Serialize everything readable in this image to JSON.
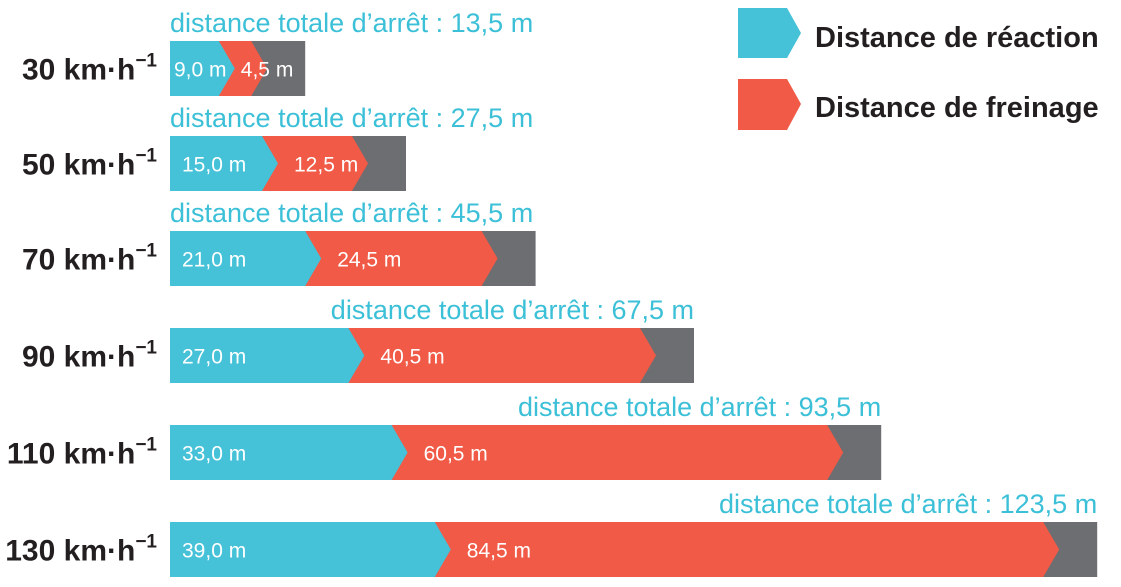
{
  "chart_data": {
    "type": "bar",
    "orientation": "horizontal",
    "stacked": true,
    "legend_position": "top-right",
    "colors": {
      "reaction": "#45c1d8",
      "braking": "#f05a46",
      "tail": "#6d6e71",
      "total_label": "#3cc0d7"
    },
    "legend": [
      "Distance de réaction",
      "Distance de freinage"
    ],
    "total_prefix": "distance totale d’arrêt :",
    "rows": [
      {
        "speed": "30 km·h",
        "exp": "−1",
        "reaction": 9.0,
        "reaction_label": "9,0 m",
        "braking": 4.5,
        "braking_label": "4,5 m",
        "total": 13.5,
        "total_label": "distance totale d’arrêt : 13,5 m"
      },
      {
        "speed": "50 km·h",
        "exp": "−1",
        "reaction": 15.0,
        "reaction_label": "15,0 m",
        "braking": 12.5,
        "braking_label": "12,5 m",
        "total": 27.5,
        "total_label": "distance totale d’arrêt : 27,5 m"
      },
      {
        "speed": "70 km·h",
        "exp": "−1",
        "reaction": 21.0,
        "reaction_label": "21,0 m",
        "braking": 24.5,
        "braking_label": "24,5 m",
        "total": 45.5,
        "total_label": "distance totale d’arrêt : 45,5 m"
      },
      {
        "speed": "90 km·h",
        "exp": "−1",
        "reaction": 27.0,
        "reaction_label": "27,0 m",
        "braking": 40.5,
        "braking_label": "40,5 m",
        "total": 67.5,
        "total_label": "distance totale d’arrêt : 67,5 m"
      },
      {
        "speed": "110 km·h",
        "exp": "−1",
        "reaction": 33.0,
        "reaction_label": "33,0 m",
        "braking": 60.5,
        "braking_label": "60,5 m",
        "total": 93.5,
        "total_label": "distance totale d’arrêt : 93,5 m"
      },
      {
        "speed": "130 km·h",
        "exp": "−1",
        "reaction": 39.0,
        "reaction_label": "39,0 m",
        "braking": 84.5,
        "braking_label": "84,5 m",
        "total": 123.5,
        "total_label": "distance totale d’arrêt : 123,5 m"
      }
    ]
  }
}
